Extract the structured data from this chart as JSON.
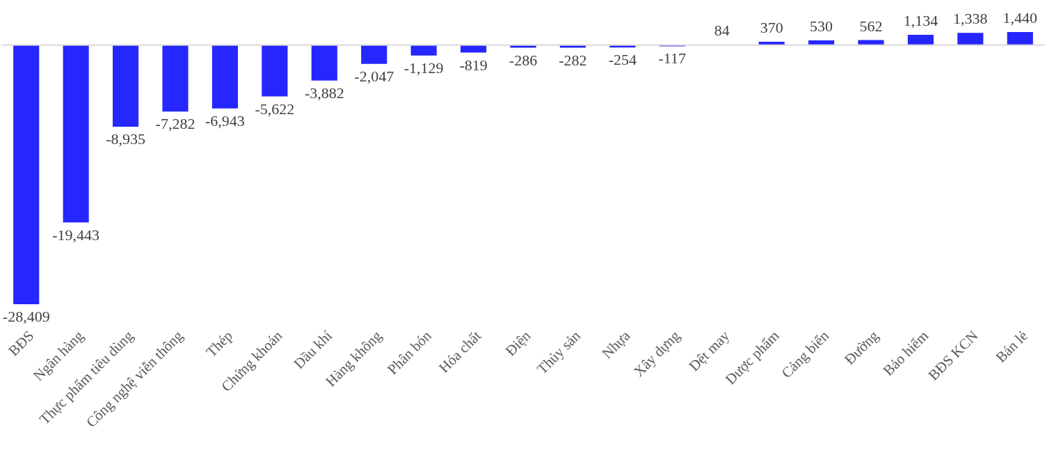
{
  "chart_data": {
    "type": "bar",
    "categories": [
      "BĐS",
      "Ngân hàng",
      "Thực phẩm tiêu dùng",
      "Công nghệ viễn thông",
      "Thép",
      "Chứng khoán",
      "Dầu khí",
      "Hàng không",
      "Phân bón",
      "Hóa chất",
      "Điện",
      "Thủy sản",
      "Nhựa",
      "Xây dựng",
      "Dệt may",
      "Dược phẩm",
      "Cảng biển",
      "Đường",
      "Bảo hiểm",
      "BĐS KCN",
      "Bán lẻ"
    ],
    "values": [
      -28409,
      -19443,
      -8935,
      -7282,
      -6943,
      -5622,
      -3882,
      -2047,
      -1129,
      -819,
      -286,
      -282,
      -254,
      -117,
      84,
      370,
      530,
      562,
      1134,
      1338,
      1440
    ],
    "colors": [
      "#2626ff",
      "#2626ff",
      "#2626ff",
      "#2626ff",
      "#2626ff",
      "#2626ff",
      "#2626ff",
      "#2626ff",
      "#2626ff",
      "#2626ff",
      "#2626ff",
      "#2626ff",
      "#2626ff",
      "#2626ff",
      "#f4f4f4",
      "#2626ff",
      "#2626ff",
      "#2626ff",
      "#2626ff",
      "#2626ff",
      "#2626ff"
    ],
    "value_labels": [
      "-28,409",
      "-19,443",
      "-8,935",
      "-7,282",
      "-6,943",
      "-5,622",
      "-3,882",
      "-2,047",
      "-1,129",
      "-819",
      "-286",
      "-282",
      "-254",
      "-117",
      "84",
      "370",
      "530",
      "562",
      "1,134",
      "1,338",
      "1,440"
    ],
    "grid": false,
    "legend": false
  }
}
